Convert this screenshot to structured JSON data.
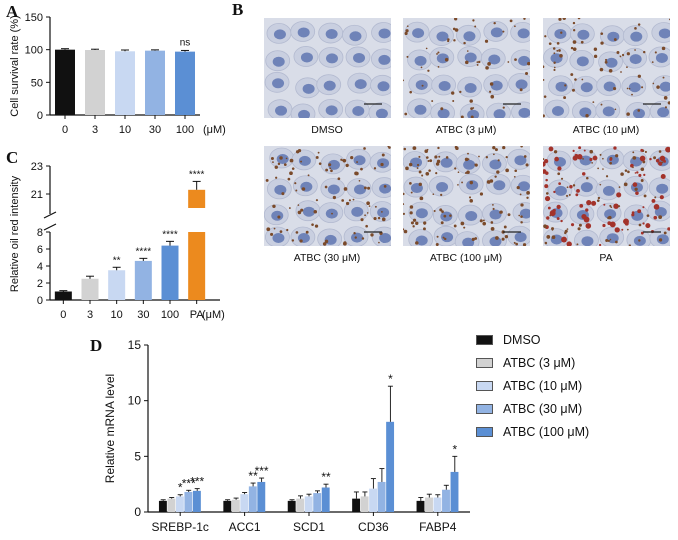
{
  "panels": {
    "A": "A",
    "B": "B",
    "C": "C",
    "D": "D"
  },
  "colors": {
    "dmso": "#111111",
    "atbc3": "#d2d2d2",
    "atbc10": "#c8d8f2",
    "atbc30": "#92b3e3",
    "atbc100": "#5b8fd4",
    "pa": "#ec8a1e"
  },
  "chart_data": [
    {
      "id": "A",
      "type": "bar",
      "ylabel": "Cell survival rate (%)",
      "ylim": [
        0,
        150
      ],
      "yticks": [
        0,
        50,
        100,
        150
      ],
      "categories": [
        "0",
        "3",
        "10",
        "30",
        "100"
      ],
      "unit": "(μM)",
      "values": [
        100,
        99.5,
        97.5,
        98.5,
        97
      ],
      "errors": [
        1.5,
        1.2,
        2.0,
        1.2,
        1.8
      ],
      "annotations": [
        "",
        "",
        "",
        "",
        "ns"
      ]
    },
    {
      "id": "C",
      "type": "bar",
      "ylabel": "Relative oil red intensity",
      "broken_axis": true,
      "lower_range": [
        0,
        8
      ],
      "lower_ticks": [
        0,
        2,
        4,
        6,
        8
      ],
      "upper_range": [
        20,
        23
      ],
      "upper_ticks": [
        21,
        23
      ],
      "categories": [
        "0",
        "3",
        "10",
        "30",
        "100",
        "PA"
      ],
      "unit": "(μM)",
      "values": [
        1.0,
        2.5,
        3.5,
        4.6,
        6.4,
        21.3
      ],
      "errors": [
        0.1,
        0.3,
        0.35,
        0.3,
        0.5,
        0.6
      ],
      "annotations": [
        "",
        "",
        "**",
        "****",
        "****",
        "****"
      ]
    },
    {
      "id": "D",
      "type": "bar",
      "ylabel": "Relative mRNA level",
      "ylim": [
        0,
        15
      ],
      "yticks": [
        0,
        5,
        10,
        15
      ],
      "categories": [
        "SREBP-1c",
        "ACC1",
        "SCD1",
        "CD36",
        "FABP4"
      ],
      "series": [
        {
          "name": "DMSO",
          "values": [
            1.0,
            1.0,
            1.0,
            1.2,
            1.0
          ],
          "errors": [
            0.1,
            0.1,
            0.1,
            0.6,
            0.3
          ],
          "annotations": [
            "",
            "",
            "",
            "",
            ""
          ]
        },
        {
          "name": "ATBC (3 μM)",
          "values": [
            1.2,
            1.1,
            1.2,
            1.4,
            1.3
          ],
          "errors": [
            0.1,
            0.15,
            0.25,
            0.4,
            0.3
          ],
          "annotations": [
            "",
            "",
            "",
            "",
            ""
          ]
        },
        {
          "name": "ATBC (10 μM)",
          "values": [
            1.4,
            1.6,
            1.4,
            2.1,
            1.3
          ],
          "errors": [
            0.15,
            0.15,
            0.2,
            0.9,
            0.25
          ],
          "annotations": [
            "*",
            "",
            "",
            "",
            ""
          ]
        },
        {
          "name": "ATBC (30 μM)",
          "values": [
            1.8,
            2.3,
            1.7,
            2.7,
            2.0
          ],
          "errors": [
            0.15,
            0.3,
            0.2,
            1.2,
            0.4
          ],
          "annotations": [
            "***",
            "**",
            "",
            "",
            ""
          ]
        },
        {
          "name": "ATBC (100 μM)",
          "values": [
            1.9,
            2.7,
            2.2,
            8.1,
            3.6
          ],
          "errors": [
            0.2,
            0.35,
            0.3,
            3.2,
            1.4
          ],
          "annotations": [
            "***",
            "***",
            "**",
            "*",
            "*"
          ]
        }
      ],
      "legend": "right"
    }
  ],
  "micrographs": [
    {
      "caption": "DMSO",
      "lipid": 0.0
    },
    {
      "caption": "ATBC (3 μM)",
      "lipid": 0.35
    },
    {
      "caption": "ATBC (10 μM)",
      "lipid": 0.45
    },
    {
      "caption": "ATBC (30 μM)",
      "lipid": 0.6
    },
    {
      "caption": "ATBC (100 μM)",
      "lipid": 0.75
    },
    {
      "caption": "PA",
      "lipid": 1.0
    }
  ]
}
